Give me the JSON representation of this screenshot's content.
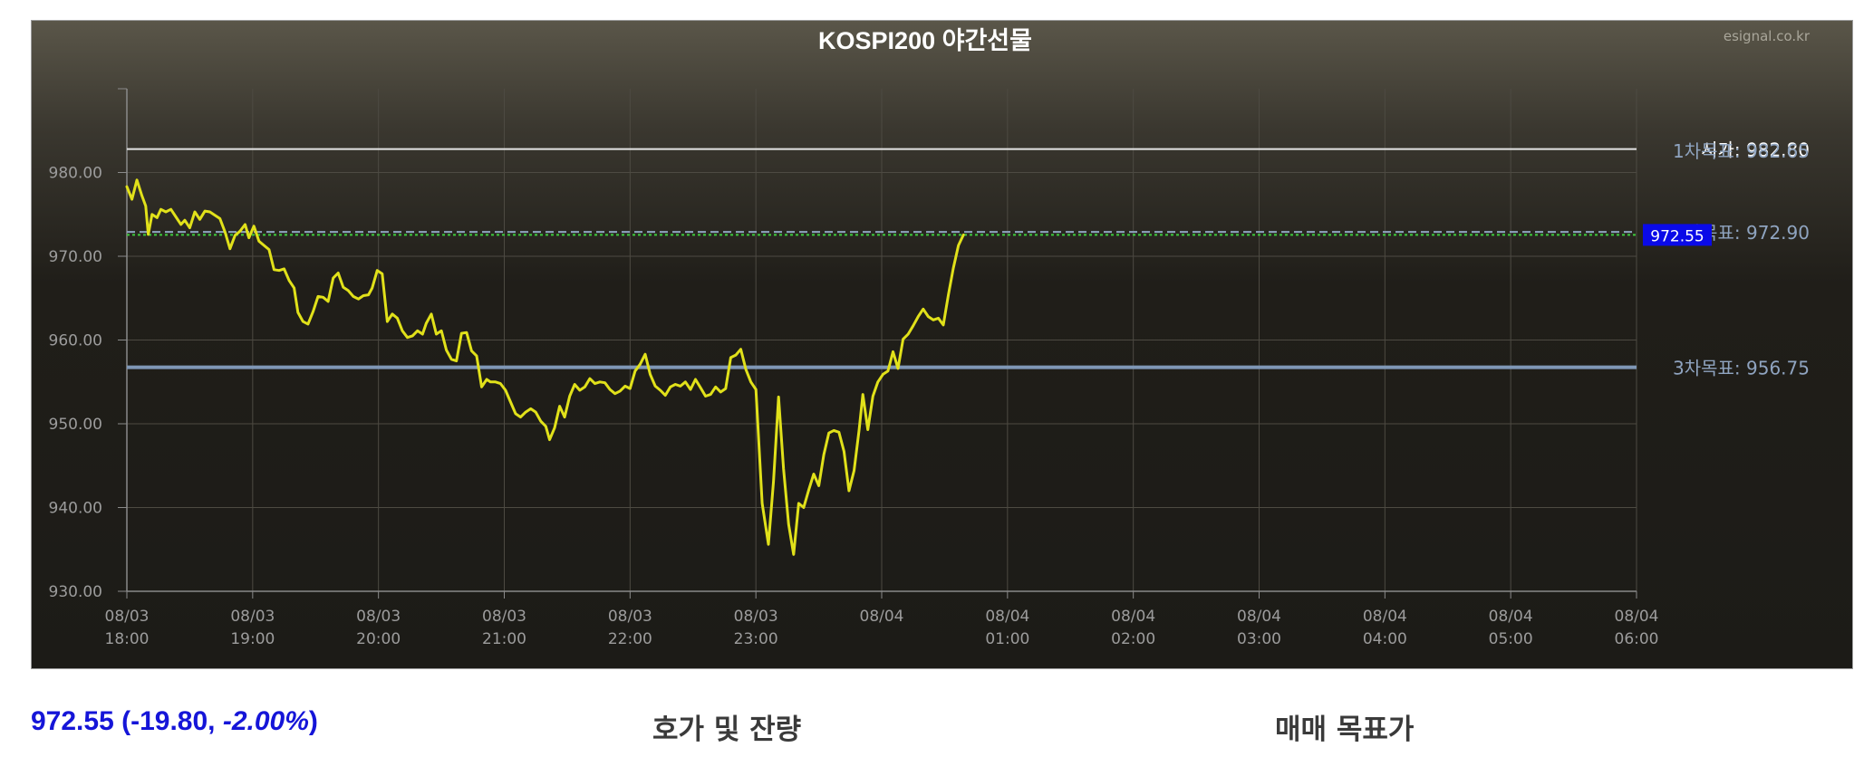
{
  "chart_data": {
    "type": "line",
    "title": "KOSPI200 야간선물",
    "watermark": "esignal.co.kr",
    "ylim": [
      930,
      990
    ],
    "y_ticks": [
      {
        "value": 930,
        "label": "930.00"
      },
      {
        "value": 940,
        "label": "940.00"
      },
      {
        "value": 950,
        "label": "950.00"
      },
      {
        "value": 960,
        "label": "960.00"
      },
      {
        "value": 970,
        "label": "970.00"
      },
      {
        "value": 980,
        "label": "980.00"
      }
    ],
    "x_unit": "hours from 08/03 18:00",
    "xlim": [
      0,
      12
    ],
    "x_ticks": [
      {
        "value": 0,
        "date": "08/03",
        "time": "18:00"
      },
      {
        "value": 1,
        "date": "08/03",
        "time": "19:00"
      },
      {
        "value": 2,
        "date": "08/03",
        "time": "20:00"
      },
      {
        "value": 3,
        "date": "08/03",
        "time": "21:00"
      },
      {
        "value": 4,
        "date": "08/03",
        "time": "22:00"
      },
      {
        "value": 5,
        "date": "08/03",
        "time": "23:00"
      },
      {
        "value": 6,
        "date": "08/04",
        "time": ""
      },
      {
        "value": 7,
        "date": "08/04",
        "time": "01:00"
      },
      {
        "value": 8,
        "date": "08/04",
        "time": "02:00"
      },
      {
        "value": 9,
        "date": "08/04",
        "time": "03:00"
      },
      {
        "value": 10,
        "date": "08/04",
        "time": "04:00"
      },
      {
        "value": 11,
        "date": "08/04",
        "time": "05:00"
      },
      {
        "value": 12,
        "date": "08/04",
        "time": "06:00"
      }
    ],
    "series": [
      {
        "color": "#e1e11a",
        "points": [
          [
            0.0,
            978.3
          ],
          [
            0.04,
            976.8
          ],
          [
            0.08,
            979.1
          ],
          [
            0.12,
            977.2
          ],
          [
            0.15,
            976.0
          ],
          [
            0.17,
            972.6
          ],
          [
            0.2,
            975.0
          ],
          [
            0.24,
            974.6
          ],
          [
            0.27,
            975.6
          ],
          [
            0.31,
            975.3
          ],
          [
            0.35,
            975.6
          ],
          [
            0.39,
            974.7
          ],
          [
            0.43,
            973.8
          ],
          [
            0.46,
            974.3
          ],
          [
            0.5,
            973.4
          ],
          [
            0.54,
            975.3
          ],
          [
            0.58,
            974.4
          ],
          [
            0.62,
            975.4
          ],
          [
            0.66,
            975.3
          ],
          [
            0.7,
            974.9
          ],
          [
            0.74,
            974.5
          ],
          [
            0.78,
            972.9
          ],
          [
            0.82,
            970.9
          ],
          [
            0.86,
            972.5
          ],
          [
            0.9,
            973.0
          ],
          [
            0.94,
            973.8
          ],
          [
            0.97,
            972.2
          ],
          [
            1.01,
            973.6
          ],
          [
            1.05,
            971.8
          ],
          [
            1.09,
            971.3
          ],
          [
            1.13,
            970.8
          ],
          [
            1.17,
            968.4
          ],
          [
            1.21,
            968.3
          ],
          [
            1.25,
            968.5
          ],
          [
            1.29,
            967.1
          ],
          [
            1.33,
            966.2
          ],
          [
            1.36,
            963.3
          ],
          [
            1.4,
            962.2
          ],
          [
            1.44,
            961.9
          ],
          [
            1.48,
            963.4
          ],
          [
            1.52,
            965.2
          ],
          [
            1.56,
            965.1
          ],
          [
            1.6,
            964.6
          ],
          [
            1.64,
            967.4
          ],
          [
            1.68,
            968.0
          ],
          [
            1.72,
            966.3
          ],
          [
            1.76,
            965.9
          ],
          [
            1.8,
            965.2
          ],
          [
            1.84,
            964.9
          ],
          [
            1.88,
            965.3
          ],
          [
            1.92,
            965.4
          ],
          [
            1.95,
            966.2
          ],
          [
            1.99,
            968.3
          ],
          [
            2.03,
            967.9
          ],
          [
            2.07,
            962.2
          ],
          [
            2.11,
            963.1
          ],
          [
            2.15,
            962.6
          ],
          [
            2.19,
            961.1
          ],
          [
            2.23,
            960.3
          ],
          [
            2.27,
            960.5
          ],
          [
            2.31,
            961.1
          ],
          [
            2.35,
            960.7
          ],
          [
            2.38,
            962.0
          ],
          [
            2.42,
            963.1
          ],
          [
            2.46,
            960.7
          ],
          [
            2.5,
            961.1
          ],
          [
            2.54,
            958.8
          ],
          [
            2.58,
            957.7
          ],
          [
            2.62,
            957.5
          ],
          [
            2.66,
            960.8
          ],
          [
            2.7,
            960.9
          ],
          [
            2.74,
            958.7
          ],
          [
            2.78,
            958.1
          ],
          [
            2.82,
            954.4
          ],
          [
            2.86,
            955.3
          ],
          [
            2.89,
            955.0
          ],
          [
            2.93,
            955.0
          ],
          [
            2.97,
            954.8
          ],
          [
            3.01,
            954.0
          ],
          [
            3.05,
            952.6
          ],
          [
            3.09,
            951.2
          ],
          [
            3.13,
            950.8
          ],
          [
            3.17,
            951.4
          ],
          [
            3.21,
            951.8
          ],
          [
            3.25,
            951.4
          ],
          [
            3.29,
            950.3
          ],
          [
            3.33,
            949.7
          ],
          [
            3.36,
            948.1
          ],
          [
            3.4,
            949.5
          ],
          [
            3.44,
            952.1
          ],
          [
            3.48,
            950.8
          ],
          [
            3.52,
            953.3
          ],
          [
            3.56,
            954.7
          ],
          [
            3.6,
            954.0
          ],
          [
            3.64,
            954.4
          ],
          [
            3.68,
            955.4
          ],
          [
            3.72,
            954.8
          ],
          [
            3.76,
            955.0
          ],
          [
            3.8,
            954.9
          ],
          [
            3.84,
            954.1
          ],
          [
            3.88,
            953.6
          ],
          [
            3.92,
            953.9
          ],
          [
            3.96,
            954.5
          ],
          [
            4.0,
            954.2
          ],
          [
            4.04,
            956.3
          ],
          [
            4.08,
            957.1
          ],
          [
            4.12,
            958.3
          ],
          [
            4.16,
            955.9
          ],
          [
            4.2,
            954.5
          ],
          [
            4.24,
            954.0
          ],
          [
            4.28,
            953.4
          ],
          [
            4.32,
            954.4
          ],
          [
            4.36,
            954.7
          ],
          [
            4.4,
            954.5
          ],
          [
            4.44,
            955.0
          ],
          [
            4.48,
            954.1
          ],
          [
            4.52,
            955.3
          ],
          [
            4.56,
            954.3
          ],
          [
            4.6,
            953.3
          ],
          [
            4.64,
            953.5
          ],
          [
            4.68,
            954.4
          ],
          [
            4.72,
            953.8
          ],
          [
            4.76,
            954.2
          ],
          [
            4.8,
            957.9
          ],
          [
            4.84,
            958.2
          ],
          [
            4.88,
            958.9
          ],
          [
            4.92,
            956.5
          ],
          [
            4.96,
            955.0
          ],
          [
            5.0,
            954.1
          ],
          [
            5.05,
            940.5
          ],
          [
            5.1,
            935.6
          ],
          [
            5.14,
            943.1
          ],
          [
            5.18,
            953.2
          ],
          [
            5.22,
            944.6
          ],
          [
            5.26,
            938.0
          ],
          [
            5.3,
            934.4
          ],
          [
            5.34,
            940.5
          ],
          [
            5.38,
            940.0
          ],
          [
            5.42,
            942.1
          ],
          [
            5.46,
            944.0
          ],
          [
            5.5,
            942.6
          ],
          [
            5.54,
            946.3
          ],
          [
            5.58,
            948.9
          ],
          [
            5.62,
            949.2
          ],
          [
            5.66,
            949.0
          ],
          [
            5.7,
            946.7
          ],
          [
            5.74,
            942.0
          ],
          [
            5.78,
            944.4
          ],
          [
            5.82,
            949.2
          ],
          [
            5.85,
            953.5
          ],
          [
            5.89,
            949.3
          ],
          [
            5.93,
            953.3
          ],
          [
            5.97,
            955.0
          ],
          [
            6.01,
            955.9
          ],
          [
            6.05,
            956.3
          ],
          [
            6.09,
            958.6
          ],
          [
            6.13,
            956.6
          ],
          [
            6.17,
            960.1
          ],
          [
            6.21,
            960.7
          ],
          [
            6.25,
            961.7
          ],
          [
            6.29,
            962.8
          ],
          [
            6.33,
            963.7
          ],
          [
            6.37,
            962.8
          ],
          [
            6.41,
            962.4
          ],
          [
            6.45,
            962.6
          ],
          [
            6.49,
            961.8
          ],
          [
            6.53,
            965.4
          ],
          [
            6.57,
            968.6
          ],
          [
            6.61,
            971.3
          ],
          [
            6.65,
            972.55
          ]
        ]
      }
    ],
    "reference_lines": [
      {
        "value": 982.8,
        "color": "#e4e4e4",
        "style": "solid",
        "label": "시가: 982.80",
        "label_color": "#ffffff"
      },
      {
        "value": 982.65,
        "color": "#8fa4c0",
        "style": "none",
        "label": "1차목표: 982.65",
        "label_color": "#8fa4c0"
      },
      {
        "value": 972.9,
        "color": "#8fa4c0",
        "style": "dashed",
        "label": "2차목표: 972.90",
        "label_color": "#8fa4c0"
      },
      {
        "value": 972.55,
        "color": "#3ecc3e",
        "style": "dotted",
        "label": "",
        "label_color": ""
      },
      {
        "value": 956.75,
        "color": "#7f97b6",
        "style": "thick",
        "label": "3차목표: 956.75",
        "label_color": "#8fa4c0"
      }
    ],
    "current_badge": {
      "value": 972.55,
      "label": "972.55",
      "bg": "#0a0ae8",
      "color": "#ffffff"
    },
    "grid": true,
    "legend": "none"
  },
  "summary": {
    "price": "972.55",
    "open_paren": " (",
    "change": "-19.80, ",
    "pct": "-2.00%",
    "close_paren": ")"
  },
  "sections": {
    "orderbook": "호가 및 잔량",
    "targets": "매매 목표가"
  }
}
